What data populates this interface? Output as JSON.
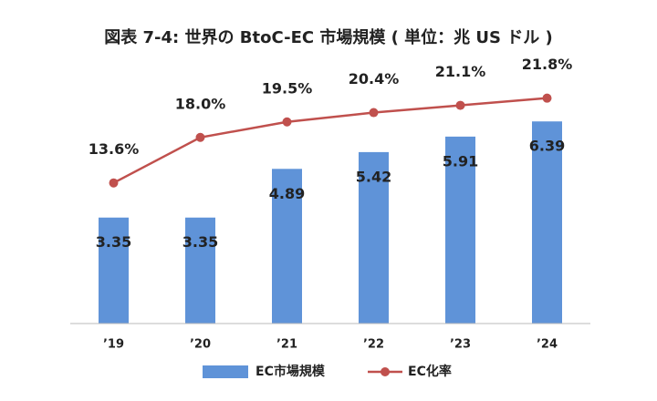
{
  "chart_data": {
    "type": "bar-line",
    "title": "図表 7-4: 世界の BtoC-EC 市場規模 ( 単位：兆 US ドル )",
    "categories": [
      "’19",
      "’20",
      "’21",
      "’22",
      "’23",
      "’24"
    ],
    "series": [
      {
        "name": "EC市場規模",
        "type": "bar",
        "color": "#5f93d8",
        "values": [
          3.35,
          3.35,
          4.89,
          5.42,
          5.91,
          6.39
        ]
      },
      {
        "name": "EC化率",
        "type": "line",
        "axis": "y2",
        "color": "#c0504d",
        "values": [
          13.6,
          18.0,
          19.5,
          20.4,
          21.1,
          21.8
        ],
        "value_labels": [
          "13.6%",
          "18.0%",
          "19.5%",
          "20.4%",
          "21.1%",
          "21.8%"
        ]
      }
    ],
    "ylim": [
      0,
      8.5
    ],
    "y2lim": [
      0,
      26
    ],
    "legend": "bottom"
  }
}
